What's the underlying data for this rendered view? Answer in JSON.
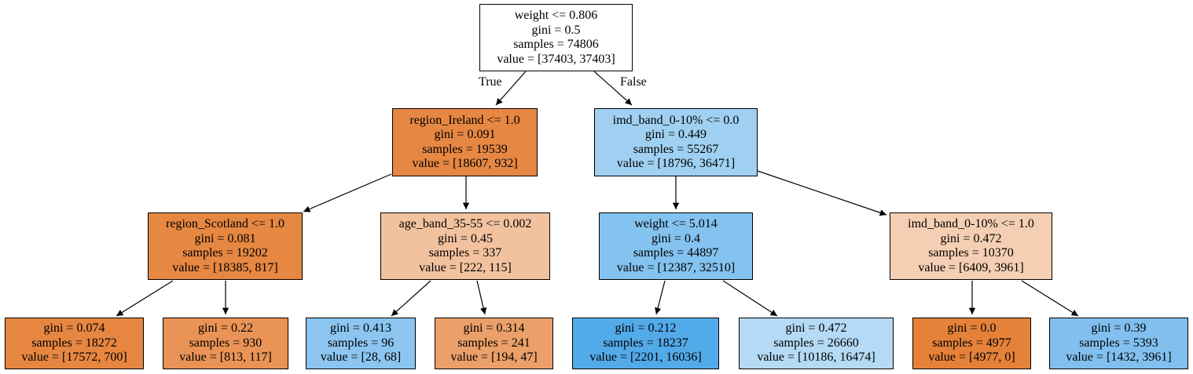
{
  "nodes": {
    "root": {
      "condition": "weight <= 0.806",
      "gini": "gini = 0.5",
      "samples": "samples = 74806",
      "value": "value = [37403, 37403]",
      "fill": "#ffffff"
    },
    "n1": {
      "condition": "region_Ireland <= 1.0",
      "gini": "gini = 0.091",
      "samples": "samples = 19539",
      "value": "value = [18607, 932]",
      "fill": "#e68743"
    },
    "n2": {
      "condition": "imd_band_0-10% <= 0.0",
      "gini": "gini = 0.449",
      "samples": "samples = 55267",
      "value": "value = [18796, 36471]",
      "fill": "#9fd0f2"
    },
    "n3": {
      "condition": "region_Scotland <= 1.0",
      "gini": "gini = 0.081",
      "samples": "samples = 19202",
      "value": "value = [18385, 817]",
      "fill": "#e68742"
    },
    "n4": {
      "condition": "age_band_35-55 <= 0.002",
      "gini": "gini = 0.45",
      "samples": "samples = 337",
      "value": "value = [222, 115]",
      "fill": "#f2c29f"
    },
    "n5": {
      "condition": "weight <= 5.014",
      "gini": "gini = 0.4",
      "samples": "samples = 44897",
      "value": "value = [12387, 32510]",
      "fill": "#84c2ef"
    },
    "n6": {
      "condition": "imd_band_0-10% <= 1.0",
      "gini": "gini = 0.472",
      "samples": "samples = 10370",
      "value": "value = [6409, 3961]",
      "fill": "#f5cfb3"
    },
    "l1": {
      "gini": "gini = 0.074",
      "samples": "samples = 18272",
      "value": "value = [17572, 700]",
      "fill": "#e68641"
    },
    "l2": {
      "gini": "gini = 0.22",
      "samples": "samples = 930",
      "value": "value = [813, 117]",
      "fill": "#e99356"
    },
    "l3": {
      "gini": "gini = 0.413",
      "samples": "samples = 96",
      "value": "value = [28, 68]",
      "fill": "#8bc5f0"
    },
    "l4": {
      "gini": "gini = 0.314",
      "samples": "samples = 241",
      "value": "value = [194, 47]",
      "fill": "#eba069"
    },
    "l5": {
      "gini": "gini = 0.212",
      "samples": "samples = 18237",
      "value": "value = [2201, 16036]",
      "fill": "#53aae9"
    },
    "l6": {
      "gini": "gini = 0.472",
      "samples": "samples = 26660",
      "value": "value = [10186, 16474]",
      "fill": "#b4daf5"
    },
    "l7": {
      "gini": "gini = 0.0",
      "samples": "samples = 4977",
      "value": "value = [4977, 0]",
      "fill": "#e58139"
    },
    "l8": {
      "gini": "gini = 0.39",
      "samples": "samples = 5393",
      "value": "value = [1432, 3961]",
      "fill": "#81c0ee"
    }
  },
  "edge_labels": {
    "true_label": "True",
    "false_label": "False"
  },
  "colors": {
    "edge": "#000000",
    "border": "#000000"
  }
}
